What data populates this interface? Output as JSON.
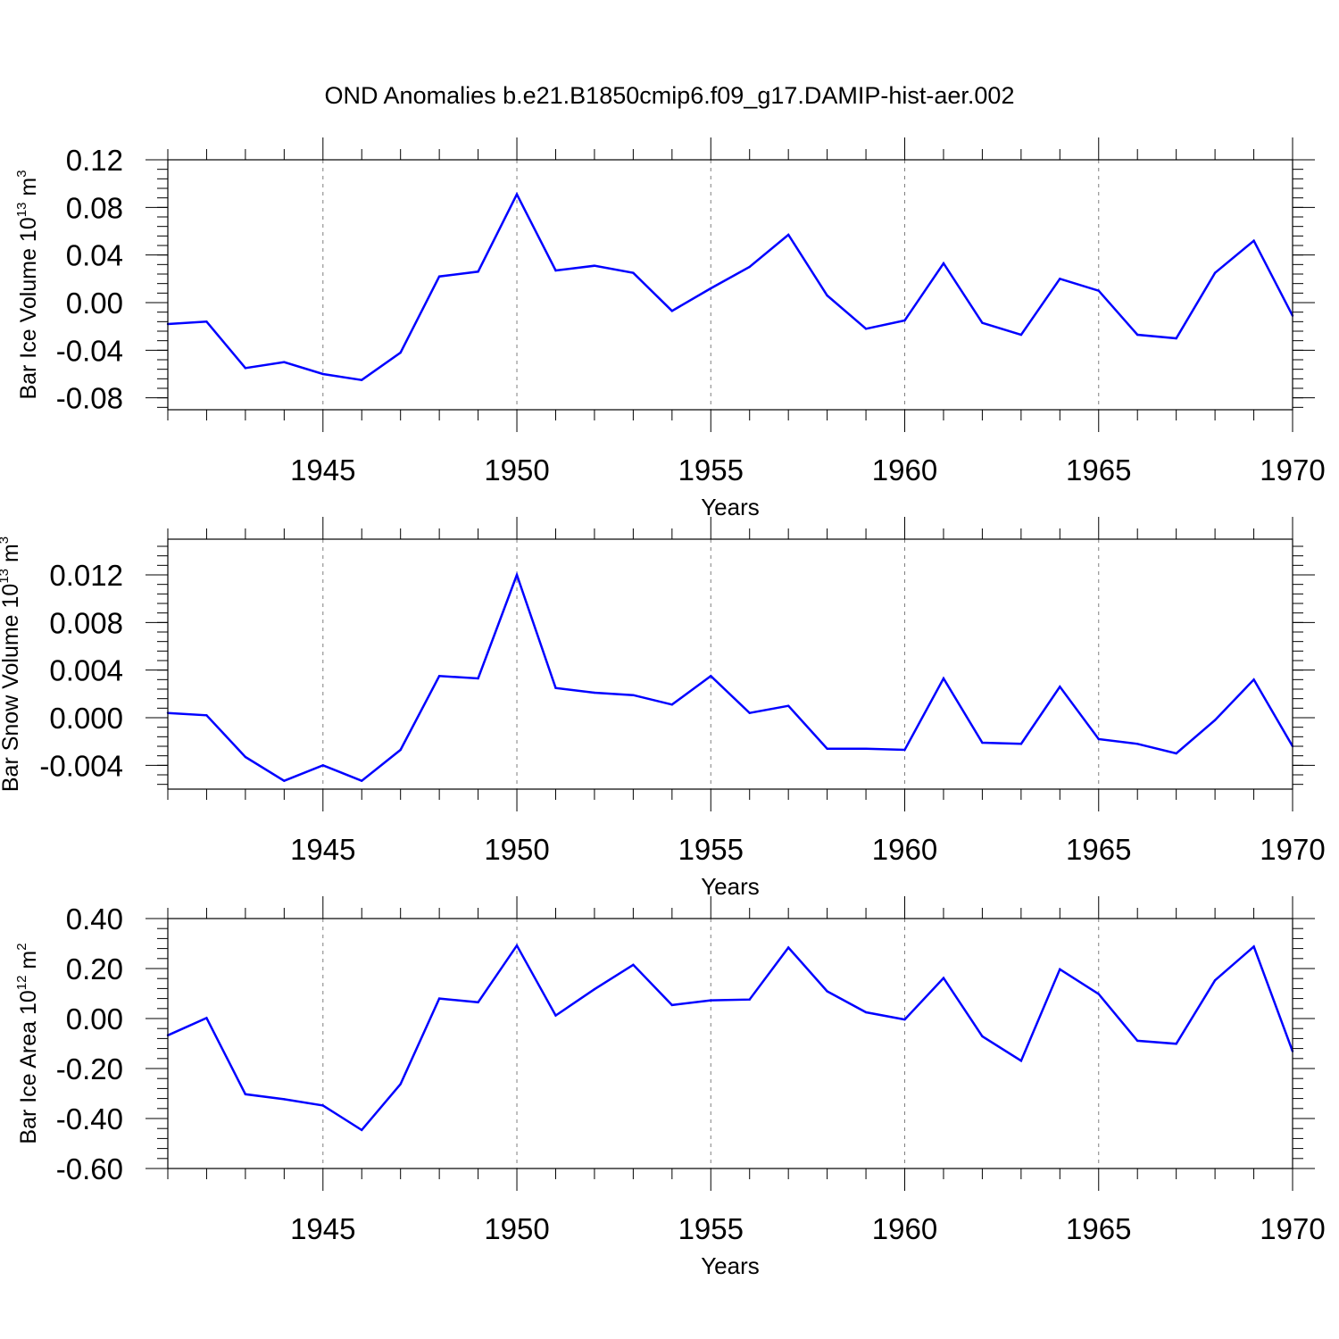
{
  "title": "OND Anomalies b.e21.B1850cmip6.f09_g17.DAMIP-hist-aer.002",
  "colors": {
    "series": "#0000ff",
    "axis": "#000000",
    "grid": "#7f7f7f"
  },
  "chart_data": [
    {
      "type": "line",
      "xlabel": "Years",
      "ylabel": {
        "main": "Bar Ice Volume 10",
        "exp": "13",
        "unit": " m",
        "unit_exp": "3"
      },
      "xlim": [
        1941,
        1970
      ],
      "ylim": [
        -0.09,
        0.12
      ],
      "x_ticks": [
        1945,
        1950,
        1955,
        1960,
        1965,
        1970
      ],
      "y_ticks": [
        0.12,
        0.08,
        0.04,
        0.0,
        -0.04,
        -0.08
      ],
      "y_tick_labels": [
        "0.12",
        "0.08",
        "0.04",
        "0.00",
        "-0.04",
        "-0.08"
      ],
      "x": [
        1941,
        1942,
        1943,
        1944,
        1945,
        1946,
        1947,
        1948,
        1949,
        1950,
        1951,
        1952,
        1953,
        1954,
        1955,
        1956,
        1957,
        1958,
        1959,
        1960,
        1961,
        1962,
        1963,
        1964,
        1965,
        1966,
        1967,
        1968,
        1969,
        1970
      ],
      "series": [
        {
          "name": "Bar Ice Volume",
          "values": [
            -0.018,
            -0.016,
            -0.055,
            -0.05,
            -0.06,
            -0.065,
            -0.042,
            0.022,
            0.026,
            0.091,
            0.027,
            0.031,
            0.025,
            -0.007,
            0.012,
            0.03,
            0.057,
            0.006,
            -0.022,
            -0.015,
            0.033,
            -0.017,
            -0.027,
            0.02,
            0.01,
            -0.027,
            -0.03,
            0.025,
            0.052,
            -0.011
          ]
        }
      ]
    },
    {
      "type": "line",
      "xlabel": "Years",
      "ylabel": {
        "main": "Bar Snow Volume 10",
        "exp": "13",
        "unit": " m",
        "unit_exp": "3"
      },
      "xlim": [
        1941,
        1970
      ],
      "ylim": [
        -0.006,
        0.015
      ],
      "x_ticks": [
        1945,
        1950,
        1955,
        1960,
        1965,
        1970
      ],
      "y_ticks": [
        0.012,
        0.008,
        0.004,
        0.0,
        -0.004
      ],
      "y_tick_labels": [
        "0.012",
        "0.008",
        "0.004",
        "0.000",
        "-0.004"
      ],
      "x": [
        1941,
        1942,
        1943,
        1944,
        1945,
        1946,
        1947,
        1948,
        1949,
        1950,
        1951,
        1952,
        1953,
        1954,
        1955,
        1956,
        1957,
        1958,
        1959,
        1960,
        1961,
        1962,
        1963,
        1964,
        1965,
        1966,
        1967,
        1968,
        1969,
        1970
      ],
      "series": [
        {
          "name": "Bar Snow Volume",
          "values": [
            0.0004,
            0.0002,
            -0.0033,
            -0.0053,
            -0.004,
            -0.0053,
            -0.0027,
            0.0035,
            0.0033,
            0.012,
            0.0025,
            0.0021,
            0.0019,
            0.0011,
            0.0035,
            0.0004,
            0.001,
            -0.0026,
            -0.0026,
            -0.0027,
            0.0033,
            -0.0021,
            -0.0022,
            0.0026,
            -0.0018,
            -0.0022,
            -0.003,
            -0.0002,
            0.0032,
            -0.0024
          ]
        }
      ]
    },
    {
      "type": "line",
      "xlabel": "Years",
      "ylabel": {
        "main": "Bar Ice Area 10",
        "exp": "12",
        "unit": " m",
        "unit_exp": "2"
      },
      "xlim": [
        1941,
        1970
      ],
      "ylim": [
        -0.6,
        0.4
      ],
      "x_ticks": [
        1945,
        1950,
        1955,
        1960,
        1965,
        1970
      ],
      "y_ticks": [
        0.4,
        0.2,
        0.0,
        -0.2,
        -0.4,
        -0.6
      ],
      "y_tick_labels": [
        "0.40",
        "0.20",
        "0.00",
        "-0.20",
        "-0.40",
        "-0.60"
      ],
      "x": [
        1941,
        1942,
        1943,
        1944,
        1945,
        1946,
        1947,
        1948,
        1949,
        1950,
        1951,
        1952,
        1953,
        1954,
        1955,
        1956,
        1957,
        1958,
        1959,
        1960,
        1961,
        1962,
        1963,
        1964,
        1965,
        1966,
        1967,
        1968,
        1969,
        1970
      ],
      "series": [
        {
          "name": "Bar Ice Area",
          "values": [
            -0.067,
            0.002,
            -0.303,
            -0.323,
            -0.348,
            -0.446,
            -0.262,
            0.08,
            0.065,
            0.292,
            0.012,
            0.117,
            0.215,
            0.054,
            0.073,
            0.076,
            0.284,
            0.109,
            0.025,
            -0.004,
            0.162,
            -0.071,
            -0.169,
            0.197,
            0.098,
            -0.089,
            -0.101,
            0.153,
            0.288,
            -0.131
          ]
        }
      ]
    }
  ]
}
